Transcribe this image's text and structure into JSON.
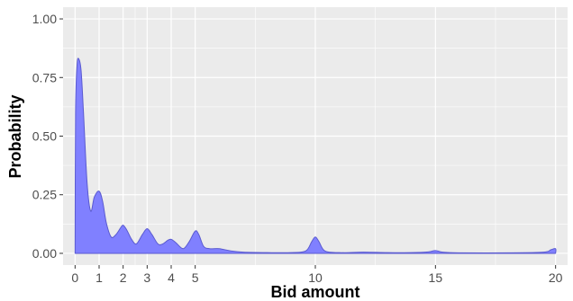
{
  "chart_data": {
    "type": "area",
    "xlabel": "Bid amount",
    "ylabel": "Probability",
    "xlim": [
      -0.5,
      20.5
    ],
    "ylim": [
      -0.05,
      1.05
    ],
    "x_ticks": [
      0,
      1,
      2,
      3,
      4,
      5,
      10,
      15,
      20
    ],
    "y_ticks": [
      0.0,
      0.25,
      0.5,
      0.75,
      1.0
    ],
    "y_tick_labels": [
      "0.00",
      "0.25",
      "0.50",
      "0.75",
      "1.00"
    ],
    "grid": true,
    "panel_background": "#ebebeb",
    "grid_color": "#ffffff",
    "fill_color": "#8080ff",
    "line_color": "#5a5ad0",
    "series": [
      {
        "points": [
          [
            0.0,
            0.0
          ],
          [
            0.02,
            0.6
          ],
          [
            0.08,
            0.8
          ],
          [
            0.15,
            0.83
          ],
          [
            0.25,
            0.78
          ],
          [
            0.35,
            0.6
          ],
          [
            0.5,
            0.3
          ],
          [
            0.65,
            0.18
          ],
          [
            0.8,
            0.24
          ],
          [
            1.0,
            0.265
          ],
          [
            1.15,
            0.22
          ],
          [
            1.3,
            0.13
          ],
          [
            1.5,
            0.07
          ],
          [
            1.7,
            0.08
          ],
          [
            1.9,
            0.11
          ],
          [
            2.0,
            0.12
          ],
          [
            2.15,
            0.1
          ],
          [
            2.35,
            0.06
          ],
          [
            2.55,
            0.04
          ],
          [
            2.8,
            0.08
          ],
          [
            3.0,
            0.105
          ],
          [
            3.2,
            0.08
          ],
          [
            3.45,
            0.04
          ],
          [
            3.65,
            0.04
          ],
          [
            3.85,
            0.055
          ],
          [
            4.0,
            0.06
          ],
          [
            4.2,
            0.045
          ],
          [
            4.5,
            0.02
          ],
          [
            4.75,
            0.05
          ],
          [
            5.0,
            0.095
          ],
          [
            5.15,
            0.08
          ],
          [
            5.35,
            0.03
          ],
          [
            5.6,
            0.02
          ],
          [
            6.0,
            0.02
          ],
          [
            6.5,
            0.01
          ],
          [
            7.0,
            0.005
          ],
          [
            8.0,
            0.003
          ],
          [
            9.0,
            0.003
          ],
          [
            9.6,
            0.01
          ],
          [
            9.85,
            0.05
          ],
          [
            10.0,
            0.07
          ],
          [
            10.15,
            0.05
          ],
          [
            10.4,
            0.01
          ],
          [
            11.0,
            0.003
          ],
          [
            12.0,
            0.005
          ],
          [
            13.0,
            0.003
          ],
          [
            14.0,
            0.003
          ],
          [
            14.7,
            0.006
          ],
          [
            15.0,
            0.012
          ],
          [
            15.3,
            0.005
          ],
          [
            16.0,
            0.002
          ],
          [
            18.0,
            0.002
          ],
          [
            19.5,
            0.005
          ],
          [
            19.8,
            0.015
          ],
          [
            20.0,
            0.02
          ],
          [
            20.0,
            0.0
          ]
        ]
      }
    ]
  }
}
